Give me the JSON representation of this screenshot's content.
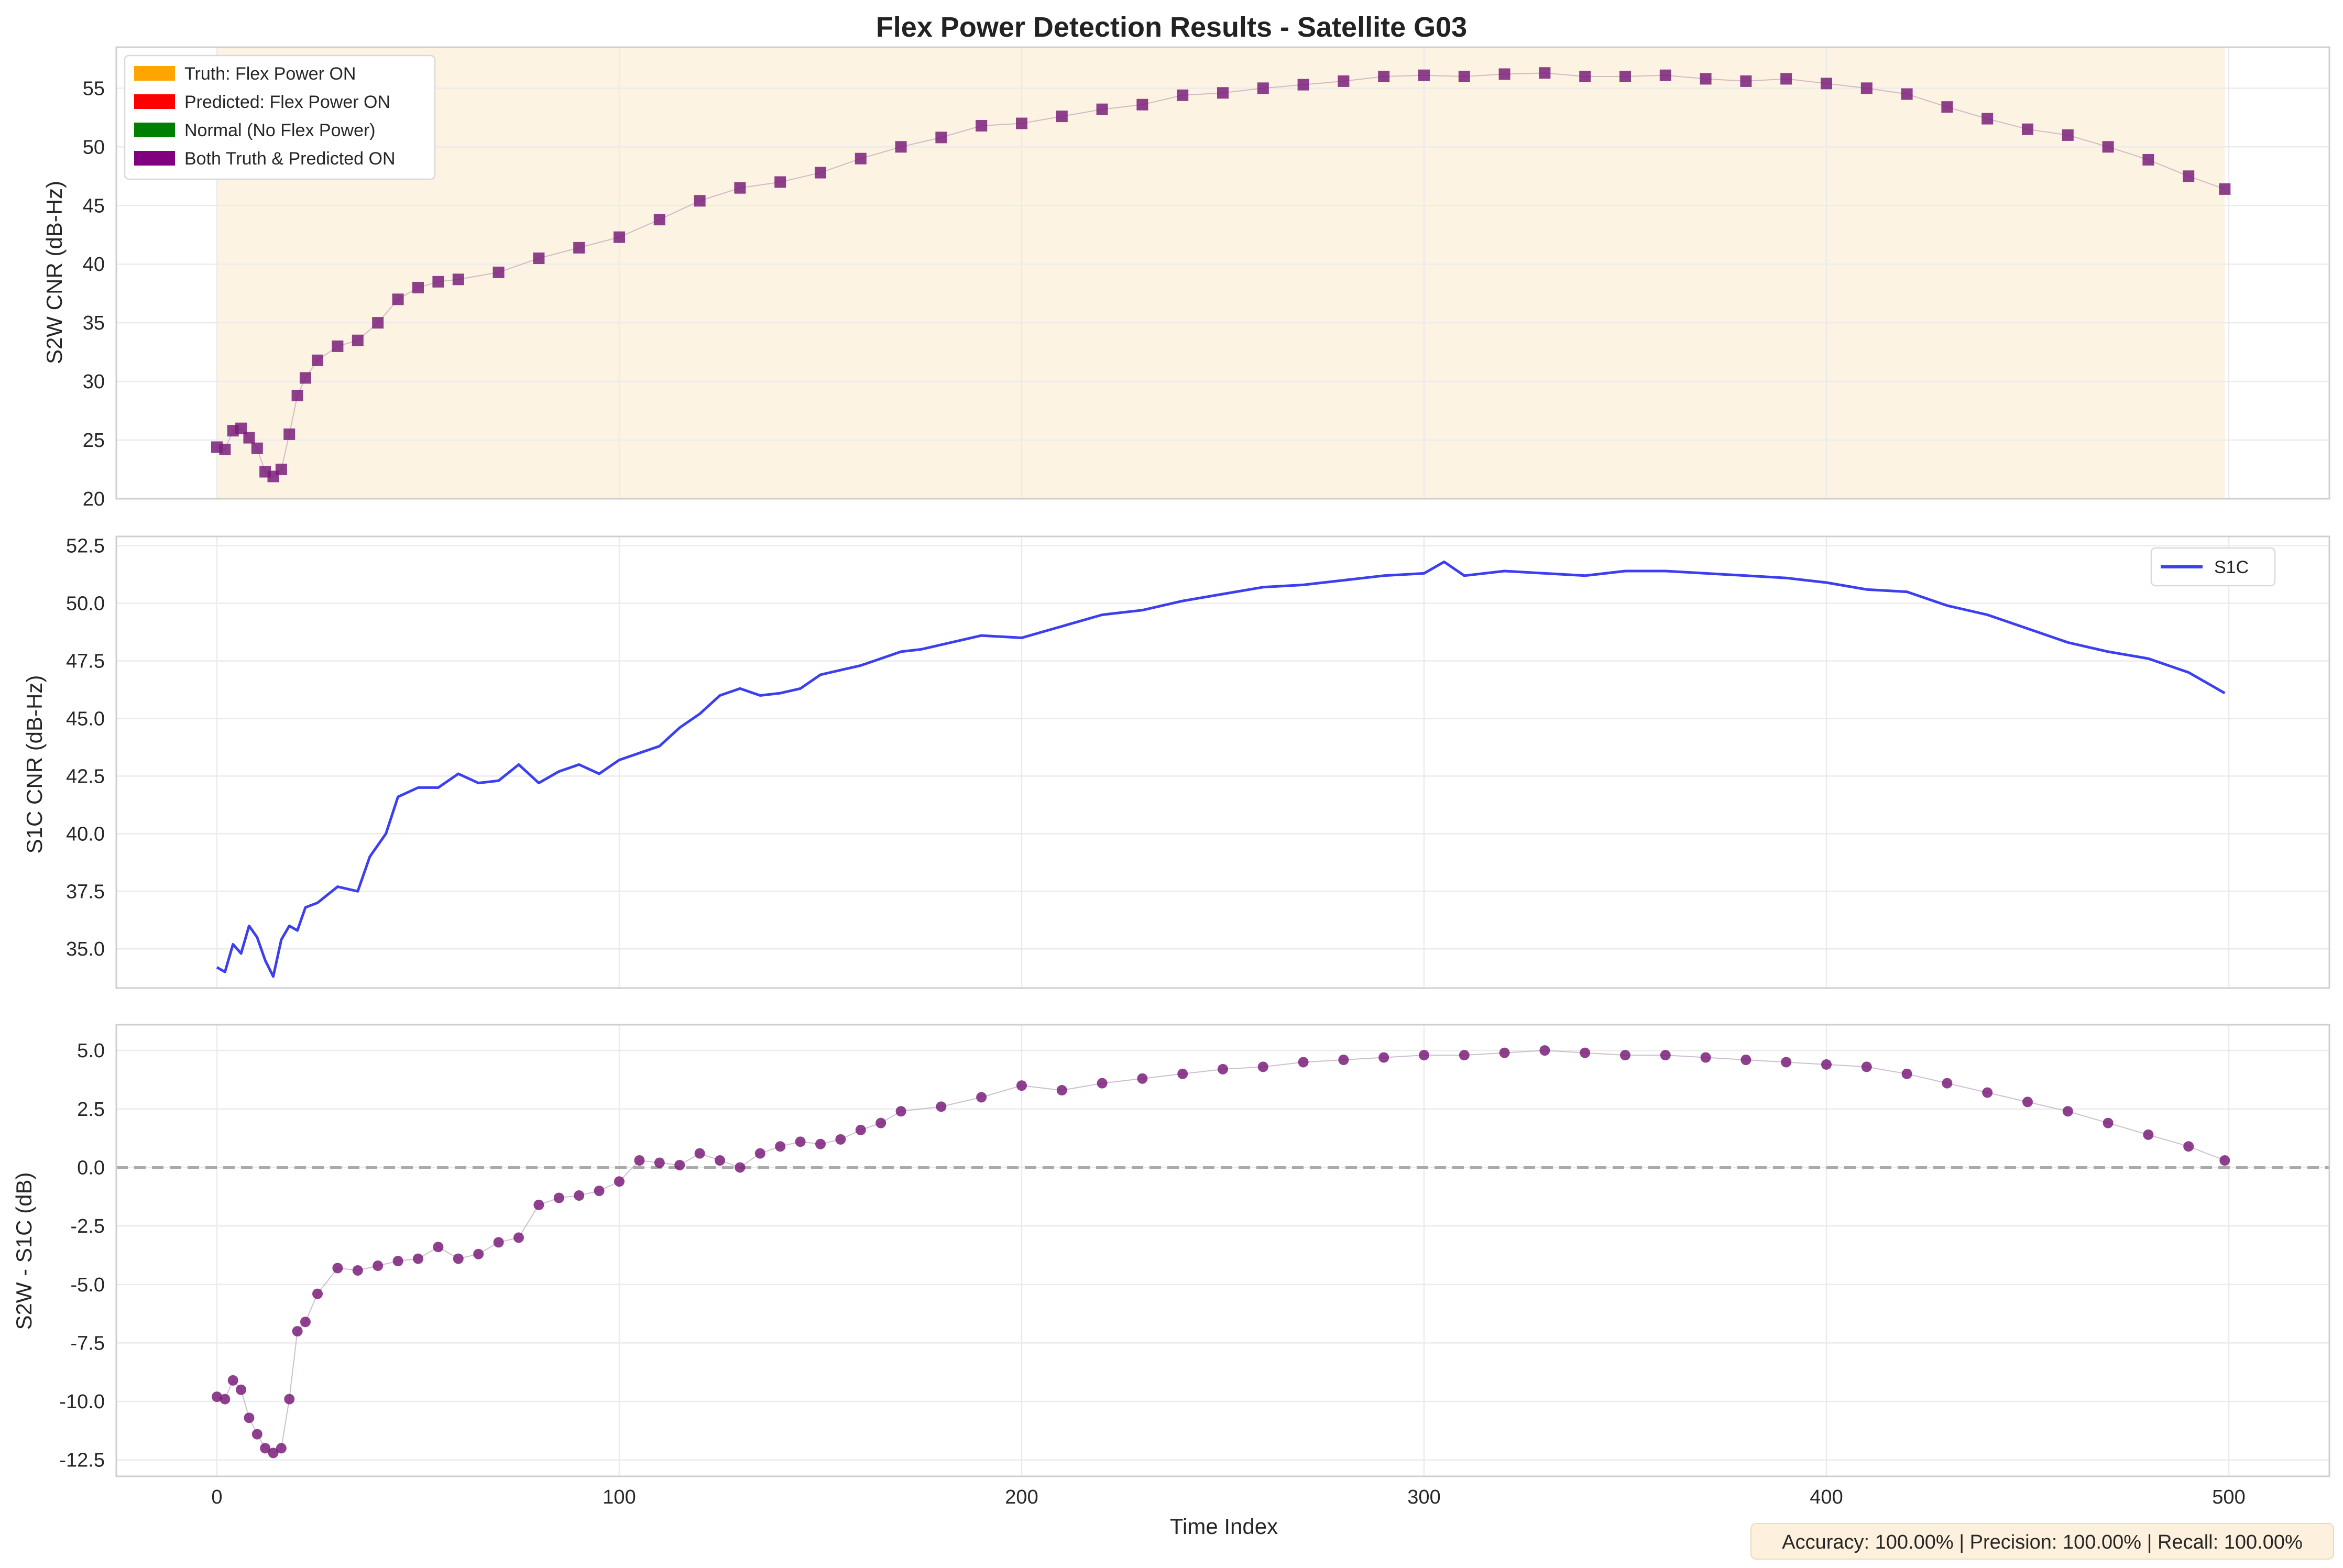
{
  "chart_data": [
    {
      "type": "scatter",
      "title": "Flex Power Detection Results - Satellite G03",
      "ylabel": "S2W CNR (dB-Hz)",
      "xlim": [
        -25,
        525
      ],
      "ylim": [
        20,
        58.5
      ],
      "yticks": [
        20,
        25,
        30,
        35,
        40,
        45,
        50,
        55
      ],
      "grid": true,
      "legend_position": "top-left",
      "legend": [
        {
          "label": "Truth: Flex Power ON",
          "color": "#ffa500"
        },
        {
          "label": "Predicted: Flex Power ON",
          "color": "#ff0000"
        },
        {
          "label": "Normal (No Flex Power)",
          "color": "#008000"
        },
        {
          "label": "Both Truth & Predicted ON",
          "color": "#800080"
        }
      ],
      "shaded_region": {
        "x": [
          0,
          499
        ],
        "color": "#fdf3e2",
        "label": "Truth: Flex Power ON"
      },
      "marker": "square",
      "marker_color": "#7a1f7a",
      "x": [
        0,
        2,
        4,
        6,
        8,
        10,
        12,
        14,
        16,
        18,
        20,
        22,
        25,
        30,
        35,
        40,
        45,
        50,
        55,
        60,
        70,
        80,
        90,
        100,
        110,
        120,
        130,
        140,
        150,
        160,
        170,
        180,
        190,
        200,
        210,
        220,
        230,
        240,
        250,
        260,
        270,
        280,
        290,
        300,
        310,
        320,
        330,
        340,
        350,
        360,
        370,
        380,
        390,
        400,
        410,
        420,
        430,
        440,
        450,
        460,
        470,
        480,
        490,
        499
      ],
      "y": [
        24.4,
        24.2,
        25.8,
        26.0,
        25.2,
        24.3,
        22.3,
        21.9,
        22.5,
        25.5,
        28.8,
        30.3,
        31.8,
        33.0,
        33.5,
        35.0,
        37.0,
        38.0,
        38.5,
        38.7,
        39.3,
        40.5,
        41.4,
        42.3,
        43.8,
        45.4,
        46.5,
        47.0,
        47.8,
        49.0,
        50.0,
        50.8,
        51.8,
        52.0,
        52.6,
        53.2,
        53.6,
        54.4,
        54.6,
        55.0,
        55.3,
        55.6,
        56.0,
        56.1,
        56.0,
        56.2,
        56.3,
        56.0,
        56.0,
        56.1,
        55.8,
        55.6,
        55.8,
        55.4,
        55.0,
        54.5,
        53.4,
        52.4,
        51.5,
        51.0,
        50.0,
        48.9,
        47.5,
        46.4
      ]
    },
    {
      "type": "line",
      "ylabel": "S1C CNR (dB-Hz)",
      "xlim": [
        -25,
        525
      ],
      "ylim": [
        33.3,
        52.9
      ],
      "yticks": [
        35.0,
        37.5,
        40.0,
        42.5,
        45.0,
        47.5,
        50.0,
        52.5
      ],
      "grid": true,
      "legend_position": "top-right",
      "series": [
        {
          "name": "S1C",
          "color": "#3b3ff0",
          "x": [
            0,
            2,
            4,
            6,
            8,
            10,
            12,
            14,
            16,
            18,
            20,
            22,
            25,
            30,
            35,
            38,
            42,
            45,
            50,
            55,
            60,
            65,
            70,
            75,
            80,
            85,
            90,
            95,
            100,
            105,
            110,
            115,
            120,
            125,
            130,
            135,
            140,
            145,
            150,
            155,
            160,
            165,
            170,
            175,
            180,
            190,
            200,
            210,
            220,
            230,
            240,
            250,
            260,
            270,
            280,
            290,
            300,
            305,
            310,
            320,
            330,
            340,
            350,
            360,
            370,
            380,
            390,
            400,
            410,
            420,
            430,
            440,
            450,
            460,
            470,
            480,
            490,
            499
          ],
          "y": [
            34.2,
            34.0,
            35.2,
            34.8,
            36.0,
            35.5,
            34.5,
            33.8,
            35.4,
            36.0,
            35.8,
            36.8,
            37.0,
            37.7,
            37.5,
            39.0,
            40.0,
            41.6,
            42.0,
            42.0,
            42.6,
            42.2,
            42.3,
            43.0,
            42.2,
            42.7,
            43.0,
            42.6,
            43.2,
            43.5,
            43.8,
            44.6,
            45.2,
            46.0,
            46.3,
            46.0,
            46.1,
            46.3,
            46.9,
            47.1,
            47.3,
            47.6,
            47.9,
            48.0,
            48.2,
            48.6,
            48.5,
            49.0,
            49.5,
            49.7,
            50.1,
            50.4,
            50.7,
            50.8,
            51.0,
            51.2,
            51.3,
            51.8,
            51.2,
            51.4,
            51.3,
            51.2,
            51.4,
            51.4,
            51.3,
            51.2,
            51.1,
            50.9,
            50.6,
            50.5,
            49.9,
            49.5,
            48.9,
            48.3,
            47.9,
            47.6,
            47.0,
            46.1
          ]
        }
      ]
    },
    {
      "type": "scatter",
      "xlabel": "Time Index",
      "ylabel": "S2W - S1C (dB)",
      "xlim": [
        -25,
        525
      ],
      "ylim": [
        -13.2,
        6.1
      ],
      "xticks": [
        0,
        100,
        200,
        300,
        400,
        500
      ],
      "yticks": [
        -12.5,
        -10.0,
        -7.5,
        -5.0,
        -2.5,
        0.0,
        2.5,
        5.0
      ],
      "grid": true,
      "reference_line": {
        "y": 0,
        "style": "dashed",
        "color": "#aaaaaa"
      },
      "marker": "circle",
      "marker_color": "#7a1f7a",
      "x": [
        0,
        2,
        4,
        6,
        8,
        10,
        12,
        14,
        16,
        18,
        20,
        22,
        25,
        30,
        35,
        40,
        45,
        50,
        55,
        60,
        65,
        70,
        75,
        80,
        85,
        90,
        95,
        100,
        105,
        110,
        115,
        120,
        125,
        130,
        135,
        140,
        145,
        150,
        155,
        160,
        165,
        170,
        180,
        190,
        200,
        210,
        220,
        230,
        240,
        250,
        260,
        270,
        280,
        290,
        300,
        310,
        320,
        330,
        340,
        350,
        360,
        370,
        380,
        390,
        400,
        410,
        420,
        430,
        440,
        450,
        460,
        470,
        480,
        490,
        499
      ],
      "y": [
        -9.8,
        -9.9,
        -9.1,
        -9.5,
        -10.7,
        -11.4,
        -12.0,
        -12.2,
        -12.0,
        -9.9,
        -7.0,
        -6.6,
        -5.4,
        -4.3,
        -4.4,
        -4.2,
        -4.0,
        -3.9,
        -3.4,
        -3.9,
        -3.7,
        -3.2,
        -3.0,
        -1.6,
        -1.3,
        -1.2,
        -1.0,
        -0.6,
        0.3,
        0.2,
        0.1,
        0.6,
        0.3,
        0.0,
        0.6,
        0.9,
        1.1,
        1.0,
        1.2,
        1.6,
        1.9,
        2.4,
        2.6,
        3.0,
        3.5,
        3.3,
        3.6,
        3.8,
        4.0,
        4.2,
        4.3,
        4.5,
        4.6,
        4.7,
        4.8,
        4.8,
        4.9,
        5.0,
        4.9,
        4.8,
        4.8,
        4.7,
        4.6,
        4.5,
        4.4,
        4.3,
        4.0,
        3.6,
        3.2,
        2.8,
        2.4,
        1.9,
        1.4,
        0.9,
        0.3
      ]
    }
  ],
  "footer": {
    "metrics_text": "Accuracy: 100.00% | Precision: 100.00% | Recall: 100.00%",
    "box_color": "#fdf0dc"
  }
}
